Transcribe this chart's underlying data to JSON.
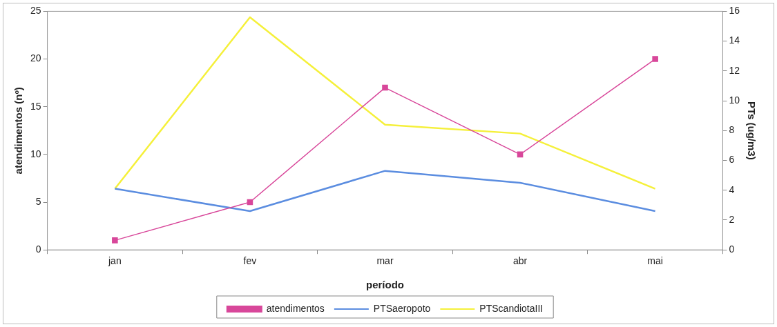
{
  "chart_data": {
    "type": "line",
    "xlabel": "período",
    "ylabel": "atendimentos (nº)",
    "y2label": "PTs (ug/m3)",
    "categories": [
      "jan",
      "fev",
      "mar",
      "abr",
      "mai"
    ],
    "series": [
      {
        "name": "atendimentos",
        "color": "#d8479a",
        "values": [
          1,
          5,
          17,
          10,
          20
        ],
        "marker": "square"
      },
      {
        "name": "PTSaeropoto",
        "color": "#5b8de0",
        "values": [
          4.1,
          2.6,
          5.3,
          4.5,
          2.6
        ],
        "axis": "y2",
        "marker": "none"
      },
      {
        "name": "PTScandiotaIII",
        "color": "#f5f03a",
        "values": [
          4.1,
          15.6,
          8.4,
          7.8,
          4.1
        ],
        "axis": "y2",
        "marker": "none"
      }
    ],
    "ylim": [
      0,
      25
    ],
    "yticks": [
      0,
      5,
      10,
      15,
      20,
      25
    ],
    "y2lim": [
      0,
      16
    ],
    "y2ticks": [
      0,
      2,
      4,
      6,
      8,
      10,
      12,
      14,
      16
    ],
    "grid": false,
    "legend": "bottom"
  }
}
